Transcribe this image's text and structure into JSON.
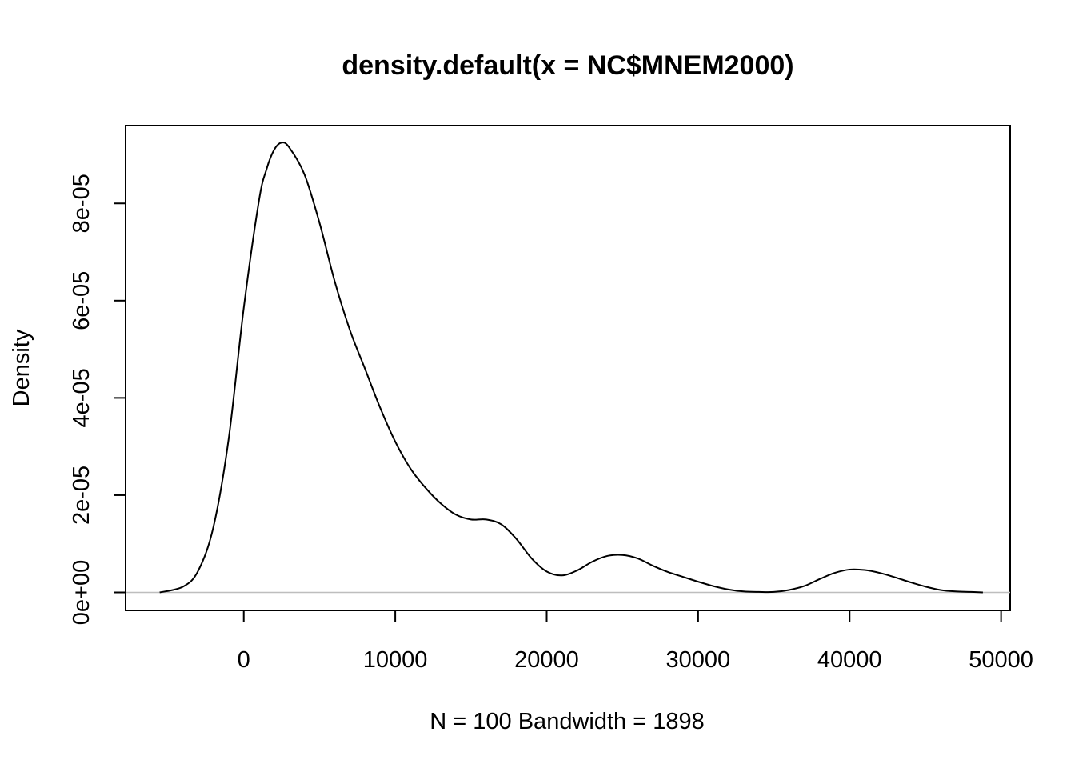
{
  "chart_data": {
    "type": "line",
    "title": "density.default(x = NC$MNEM2000)",
    "xlabel": "N = 100   Bandwidth = 1898",
    "ylabel": "Density",
    "xlim": [
      -7800,
      50600
    ],
    "ylim": [
      -3.7e-06,
      9.6e-05
    ],
    "x_ticks": [
      0,
      10000,
      20000,
      30000,
      40000,
      50000
    ],
    "x_tick_labels": [
      "0",
      "10000",
      "20000",
      "30000",
      "40000",
      "50000"
    ],
    "y_ticks": [
      0,
      2e-05,
      4e-05,
      6e-05,
      8e-05
    ],
    "y_tick_labels": [
      "0e+00",
      "2e-05",
      "4e-05",
      "6e-05",
      "8e-05"
    ],
    "grid": false,
    "legend": "none",
    "baseline_y": 0,
    "series": [
      {
        "x": [
          -5550,
          -4000,
          -3000,
          -2000,
          -1000,
          0,
          1000,
          1500,
          2000,
          2500,
          3000,
          4000,
          5000,
          6000,
          7000,
          8000,
          9000,
          10000,
          11000,
          12000,
          13000,
          14000,
          15000,
          16000,
          17000,
          18000,
          19000,
          20000,
          21000,
          22000,
          23000,
          24000,
          25000,
          26000,
          27000,
          28000,
          29000,
          30000,
          31000,
          32000,
          33000,
          34000,
          35000,
          36000,
          37000,
          38000,
          39000,
          40000,
          41000,
          42000,
          43000,
          44000,
          45000,
          46000,
          47000,
          48000,
          48800
        ],
        "y": [
          0,
          1.2e-06,
          4.5e-06,
          1.35e-05,
          3.15e-05,
          5.85e-05,
          8.05e-05,
          8.7e-05,
          9.1e-05,
          9.25e-05,
          9.15e-05,
          8.6e-05,
          7.6e-05,
          6.4e-05,
          5.4e-05,
          4.6e-05,
          3.8e-05,
          3.1e-05,
          2.55e-05,
          2.15e-05,
          1.83e-05,
          1.6e-05,
          1.5e-05,
          1.5e-05,
          1.4e-05,
          1.1e-05,
          7e-06,
          4.3e-06,
          3.5e-06,
          4.5e-06,
          6.3e-06,
          7.5e-06,
          7.7e-06,
          7e-06,
          5.5e-06,
          4.2e-06,
          3.2e-06,
          2.2e-06,
          1.3e-06,
          6e-07,
          2e-07,
          1e-07,
          1e-07,
          5e-07,
          1.3e-06,
          2.7e-06,
          4e-06,
          4.7e-06,
          4.6e-06,
          4e-06,
          3.1e-06,
          2.1e-06,
          1.2e-06,
          5e-07,
          2e-07,
          1e-07,
          0
        ]
      }
    ]
  }
}
